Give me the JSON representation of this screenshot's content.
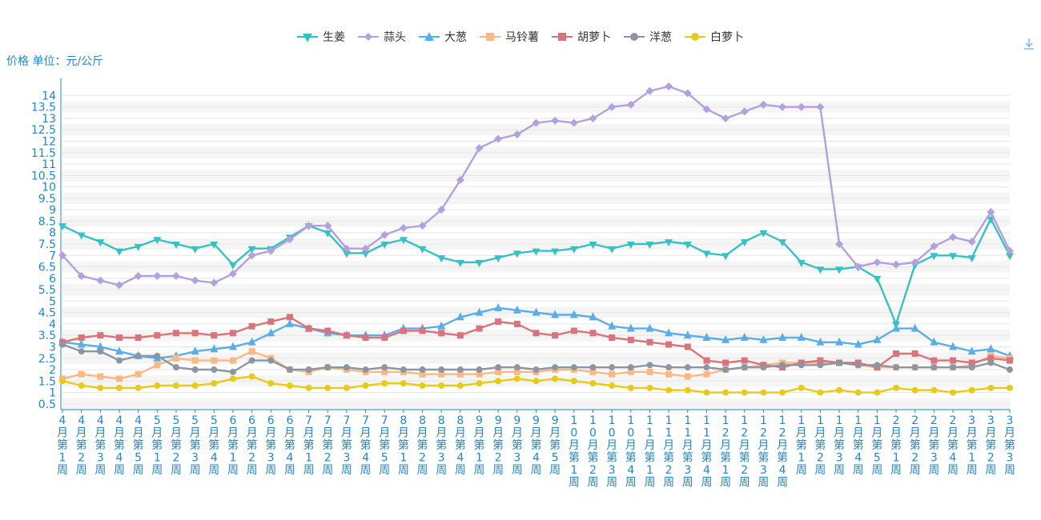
{
  "colors": {
    "生姜": "#36c1c3",
    "蒜头": "#b3a0dc",
    "大葱": "#5aaee8",
    "马铃薯": "#fbb882",
    "胡萝卜": "#d9747b",
    "洋葱": "#8c95a3",
    "白萝卜": "#e7cb18",
    "axis_text": "#1e88c7"
  },
  "download_icon": "download-icon",
  "chart_data": {
    "type": "line",
    "ylabel": "价格 单位：元/公斤",
    "ylim": [
      0.5,
      14.5
    ],
    "yticks": [
      "0.5",
      "1",
      "1.5",
      "2",
      "2.5",
      "3",
      "3.5",
      "4",
      "4.5",
      "5",
      "5.5",
      "6",
      "6.5",
      "7",
      "7.5",
      "8",
      "8.5",
      "9",
      "9.5",
      "10",
      "10.5",
      "11",
      "11.5",
      "12",
      "12.5",
      "13",
      "13.5",
      "14"
    ],
    "grid": true,
    "legend_position": "top-center",
    "categories": [
      "4月第1周",
      "4月第2周",
      "4月第3周",
      "4月第4周",
      "4月第5周",
      "5月第1周",
      "5月第2周",
      "5月第3周",
      "5月第4周",
      "6月第1周",
      "6月第2周",
      "6月第3周",
      "6月第4周",
      "7月第1周",
      "7月第2周",
      "7月第3周",
      "7月第4周",
      "7月第5周",
      "8月第1周",
      "8月第2周",
      "8月第3周",
      "8月第4周",
      "9月第1周",
      "9月第2周",
      "9月第3周",
      "9月第4周",
      "9月第5周",
      "10月第1周",
      "10月第2周",
      "10月第3周",
      "10月第4周",
      "11月第1周",
      "11月第2周",
      "11月第3周",
      "11月第4周",
      "12月第1周",
      "12月第2周",
      "12月第3周",
      "12月第4周",
      "1月第1周",
      "1月第2周",
      "1月第3周",
      "1月第4周",
      "1月第5周",
      "2月第1周",
      "2月第2周",
      "2月第3周",
      "2月第4周",
      "3月第1周",
      "3月第2周",
      "3月第3周"
    ],
    "series": [
      {
        "name": "生姜",
        "marker": "triangle-down",
        "values": [
          8.3,
          7.9,
          7.6,
          7.2,
          7.4,
          7.7,
          7.5,
          7.3,
          7.5,
          6.6,
          7.3,
          7.3,
          7.8,
          8.3,
          8.0,
          7.1,
          7.1,
          7.5,
          7.7,
          7.3,
          6.9,
          6.7,
          6.7,
          6.9,
          7.1,
          7.2,
          7.2,
          7.3,
          7.5,
          7.3,
          7.5,
          7.5,
          7.6,
          7.5,
          7.1,
          7.0,
          7.6,
          8.0,
          7.6,
          6.7,
          6.4,
          6.4,
          6.5,
          6.0,
          4.0,
          6.6,
          7.0,
          7.0,
          6.9,
          8.6,
          7.0
        ]
      },
      {
        "name": "蒜头",
        "marker": "diamond",
        "values": [
          7.0,
          6.1,
          5.9,
          5.7,
          6.1,
          6.1,
          6.1,
          5.9,
          5.8,
          6.2,
          7.0,
          7.2,
          7.7,
          8.3,
          8.3,
          7.3,
          7.3,
          7.9,
          8.2,
          8.3,
          9.0,
          10.3,
          11.7,
          12.1,
          12.3,
          12.8,
          12.9,
          12.8,
          13.0,
          13.5,
          13.6,
          14.2,
          14.4,
          14.1,
          13.4,
          13.0,
          13.3,
          13.6,
          13.5,
          13.5,
          13.5,
          7.5,
          6.5,
          6.7,
          6.6,
          6.7,
          7.4,
          7.8,
          7.6,
          8.9,
          7.2
        ]
      },
      {
        "name": "大葱",
        "marker": "triangle",
        "values": [
          3.2,
          3.1,
          3.0,
          2.8,
          2.6,
          2.5,
          2.6,
          2.8,
          2.9,
          3.0,
          3.2,
          3.6,
          4.0,
          3.8,
          3.6,
          3.5,
          3.5,
          3.5,
          3.8,
          3.8,
          3.9,
          4.3,
          4.5,
          4.7,
          4.6,
          4.5,
          4.4,
          4.4,
          4.3,
          3.9,
          3.8,
          3.8,
          3.6,
          3.5,
          3.4,
          3.3,
          3.4,
          3.3,
          3.4,
          3.4,
          3.2,
          3.2,
          3.1,
          3.3,
          3.8,
          3.8,
          3.2,
          3.0,
          2.8,
          2.9,
          2.6
        ]
      },
      {
        "name": "马铃薯",
        "marker": "square",
        "values": [
          1.6,
          1.8,
          1.7,
          1.6,
          1.8,
          2.2,
          2.5,
          2.4,
          2.4,
          2.4,
          2.8,
          2.5,
          2.0,
          1.9,
          2.1,
          2.0,
          1.9,
          1.9,
          1.9,
          1.8,
          1.8,
          1.8,
          1.8,
          1.9,
          1.9,
          1.9,
          2.0,
          2.0,
          1.9,
          1.8,
          1.9,
          1.9,
          1.8,
          1.7,
          1.8,
          2.0,
          2.1,
          2.2,
          2.3,
          2.3,
          2.3,
          2.3,
          2.2,
          2.1,
          2.1,
          2.1,
          2.1,
          2.1,
          2.2,
          2.6,
          2.5
        ]
      },
      {
        "name": "胡萝卜",
        "marker": "square",
        "values": [
          3.2,
          3.4,
          3.5,
          3.4,
          3.4,
          3.5,
          3.6,
          3.6,
          3.5,
          3.6,
          3.9,
          4.1,
          4.3,
          3.8,
          3.7,
          3.5,
          3.4,
          3.4,
          3.7,
          3.7,
          3.6,
          3.5,
          3.8,
          4.1,
          4.0,
          3.6,
          3.5,
          3.7,
          3.6,
          3.4,
          3.3,
          3.2,
          3.1,
          3.0,
          2.4,
          2.3,
          2.4,
          2.2,
          2.1,
          2.3,
          2.4,
          2.3,
          2.3,
          2.1,
          2.7,
          2.7,
          2.4,
          2.4,
          2.3,
          2.5,
          2.4
        ]
      },
      {
        "name": "洋葱",
        "marker": "circle",
        "values": [
          3.1,
          2.8,
          2.8,
          2.4,
          2.6,
          2.6,
          2.1,
          2.0,
          2.0,
          1.9,
          2.4,
          2.4,
          2.0,
          2.0,
          2.1,
          2.1,
          2.0,
          2.1,
          2.0,
          2.0,
          2.0,
          2.0,
          2.0,
          2.1,
          2.1,
          2.0,
          2.1,
          2.1,
          2.1,
          2.1,
          2.1,
          2.2,
          2.1,
          2.1,
          2.1,
          2.0,
          2.1,
          2.1,
          2.2,
          2.2,
          2.2,
          2.3,
          2.2,
          2.2,
          2.1,
          2.1,
          2.1,
          2.1,
          2.1,
          2.3,
          2.0
        ]
      },
      {
        "name": "白萝卜",
        "marker": "circle",
        "values": [
          1.5,
          1.3,
          1.2,
          1.2,
          1.2,
          1.3,
          1.3,
          1.3,
          1.4,
          1.6,
          1.7,
          1.4,
          1.3,
          1.2,
          1.2,
          1.2,
          1.3,
          1.4,
          1.4,
          1.3,
          1.3,
          1.3,
          1.4,
          1.5,
          1.6,
          1.5,
          1.6,
          1.5,
          1.4,
          1.3,
          1.2,
          1.2,
          1.1,
          1.1,
          1.0,
          1.0,
          1.0,
          1.0,
          1.0,
          1.2,
          1.0,
          1.1,
          1.0,
          1.0,
          1.2,
          1.1,
          1.1,
          1.0,
          1.1,
          1.2,
          1.2
        ]
      }
    ]
  }
}
